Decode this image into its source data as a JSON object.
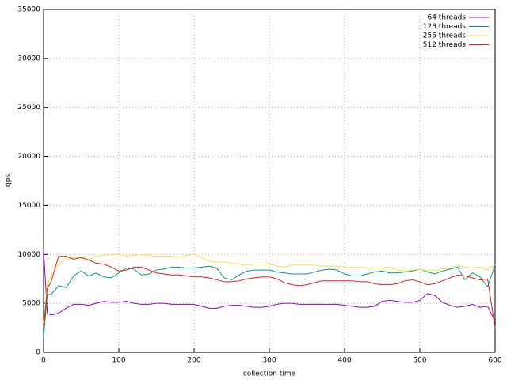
{
  "chart_data": {
    "type": "line",
    "x_label": "collection time",
    "y_label": "qps",
    "x": [
      0,
      5,
      10,
      20,
      30,
      40,
      50,
      60,
      70,
      80,
      90,
      100,
      110,
      120,
      130,
      140,
      150,
      160,
      170,
      180,
      190,
      200,
      210,
      220,
      230,
      240,
      250,
      260,
      270,
      280,
      290,
      300,
      310,
      320,
      330,
      340,
      350,
      360,
      370,
      380,
      390,
      400,
      410,
      420,
      430,
      440,
      450,
      460,
      470,
      480,
      490,
      500,
      510,
      520,
      530,
      540,
      550,
      560,
      570,
      580,
      590,
      600
    ],
    "series": [
      {
        "name": "64 threads",
        "color": "#9400d3",
        "values": [
          10500,
          4000,
          3800,
          4000,
          4500,
          4900,
          4900,
          4800,
          5000,
          5200,
          5100,
          5100,
          5200,
          5000,
          4900,
          4900,
          5000,
          5000,
          4900,
          4900,
          4900,
          4900,
          4700,
          4500,
          4500,
          4700,
          4800,
          4800,
          4700,
          4600,
          4600,
          4700,
          4900,
          5000,
          5000,
          4900,
          4900,
          4900,
          4900,
          4900,
          4900,
          4800,
          4700,
          4600,
          4600,
          4700,
          5200,
          5300,
          5200,
          5100,
          5100,
          5300,
          6000,
          5800,
          5100,
          4800,
          4600,
          4700,
          4900,
          4600,
          4700,
          3200
        ]
      },
      {
        "name": "128 threads",
        "color": "#009e73",
        "values": [
          1500,
          5900,
          5900,
          6800,
          6600,
          7800,
          8300,
          7800,
          8100,
          7700,
          7600,
          8100,
          8600,
          8500,
          7900,
          8000,
          8400,
          8500,
          8700,
          8700,
          8600,
          8600,
          8700,
          8800,
          8600,
          7600,
          7400,
          7900,
          8300,
          8400,
          8400,
          8400,
          8200,
          8100,
          8000,
          8000,
          8000,
          8200,
          8400,
          8500,
          8400,
          8000,
          7800,
          7800,
          8000,
          8200,
          8300,
          8100,
          8100,
          8200,
          8300,
          8500,
          8200,
          8000,
          8300,
          8500,
          8700,
          7400,
          8100,
          7700,
          6700,
          8900
        ]
      },
      {
        "name": "256 threads",
        "color": "#f0e442",
        "values": [
          3000,
          7000,
          7800,
          9000,
          9500,
          9700,
          9600,
          9500,
          9800,
          9900,
          10000,
          10000,
          9800,
          9900,
          10000,
          9900,
          9800,
          9800,
          9800,
          9700,
          9900,
          10000,
          9700,
          9300,
          9200,
          9200,
          9100,
          9000,
          8900,
          9000,
          9000,
          9000,
          8800,
          8700,
          8900,
          8900,
          8900,
          8900,
          8800,
          8800,
          8800,
          8700,
          8700,
          8700,
          8600,
          8600,
          8600,
          8700,
          8400,
          8300,
          8400,
          8500,
          8300,
          8400,
          8500,
          8600,
          8900,
          8700,
          8600,
          8700,
          8400,
          9000
        ]
      },
      {
        "name": "512 threads",
        "color": "#e51e10",
        "values": [
          2500,
          6500,
          7200,
          9800,
          9800,
          9500,
          9700,
          9400,
          9100,
          9000,
          8700,
          8300,
          8400,
          8700,
          8700,
          8400,
          8100,
          8000,
          7900,
          7900,
          7800,
          7700,
          7700,
          7600,
          7400,
          7200,
          7200,
          7300,
          7500,
          7600,
          7700,
          7700,
          7500,
          7100,
          6900,
          6800,
          6900,
          7100,
          7300,
          7300,
          7300,
          7300,
          7300,
          7200,
          7200,
          7000,
          6900,
          6900,
          7000,
          7300,
          7400,
          7200,
          6900,
          7000,
          7300,
          7600,
          7900,
          7800,
          7600,
          7400,
          7500,
          2500
        ]
      }
    ],
    "xlim": [
      0,
      600
    ],
    "xticks": [
      0,
      100,
      200,
      300,
      400,
      500,
      600
    ],
    "ylim": [
      0,
      35000
    ],
    "yticks": [
      0,
      5000,
      10000,
      15000,
      20000,
      25000,
      30000,
      35000
    ],
    "grid": true,
    "legend": "top-right"
  }
}
